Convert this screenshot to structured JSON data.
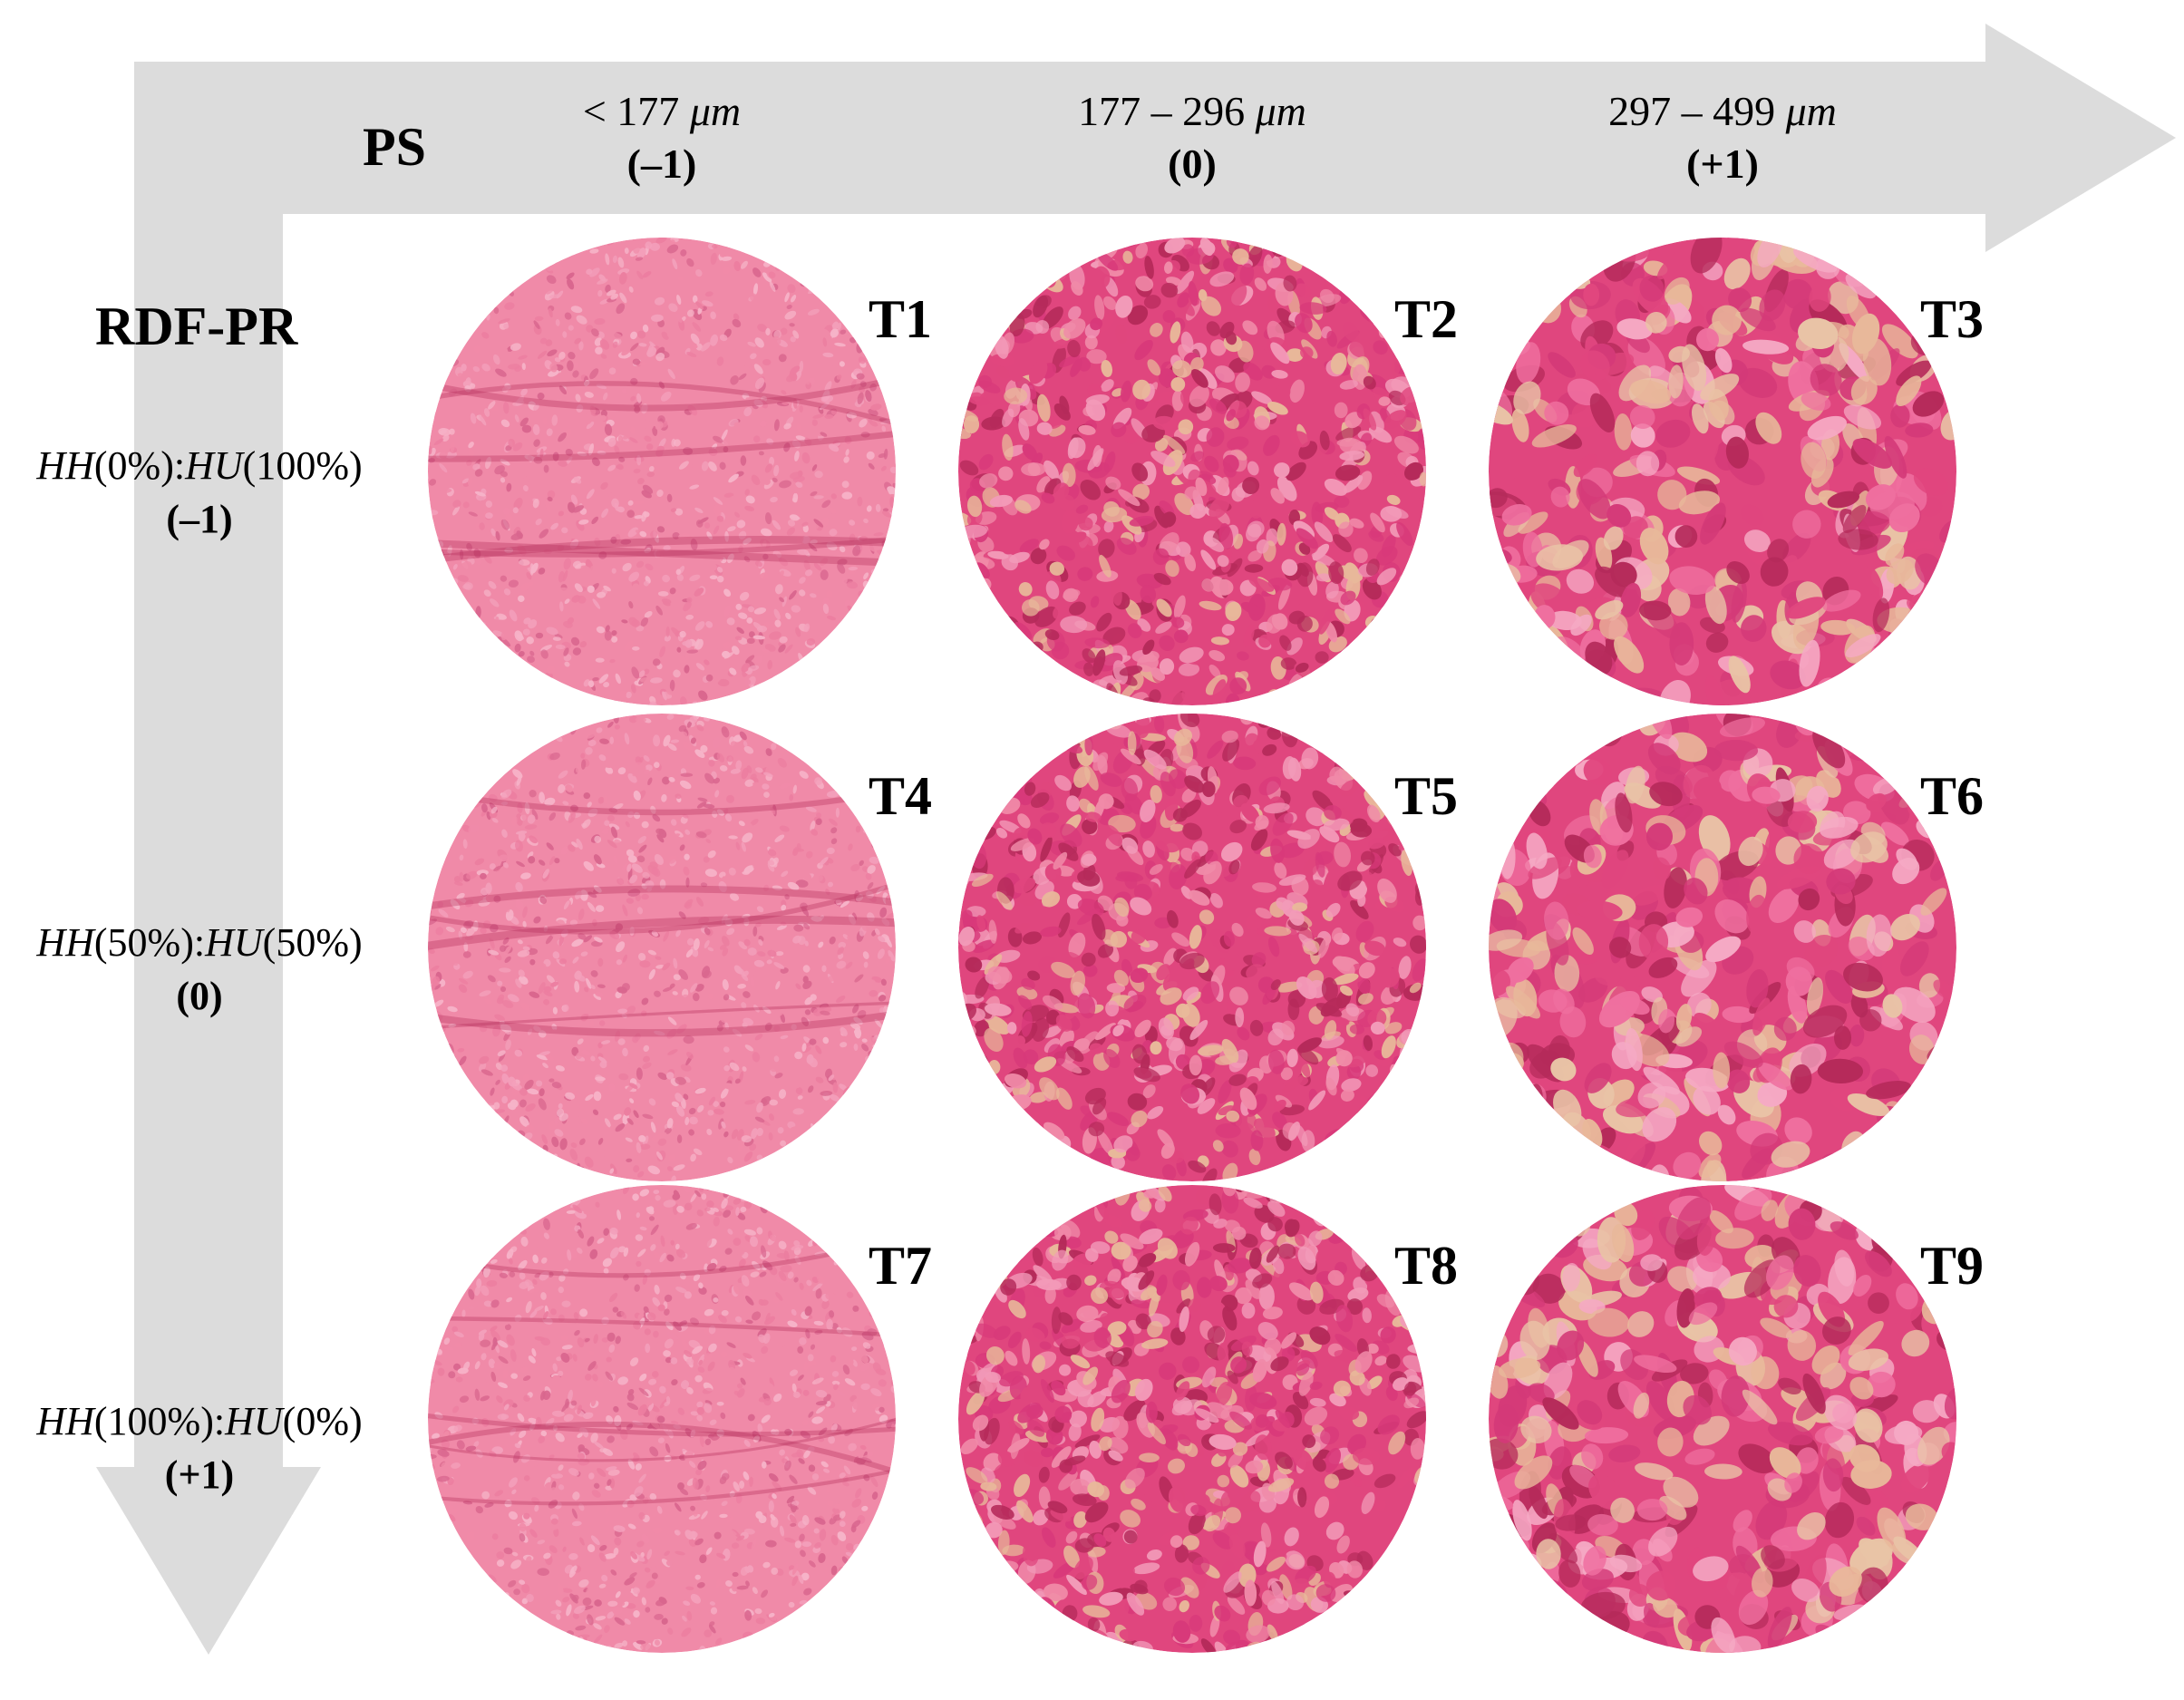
{
  "header": {
    "ps_title": "PS",
    "rdf_title": "RDF-PR"
  },
  "columns": [
    {
      "prefix": "< 177 ",
      "unit": "μm",
      "code": "(–1)"
    },
    {
      "prefix": "177 – 296 ",
      "unit": "μm",
      "code": "(0)"
    },
    {
      "prefix": "297 – 499 ",
      "unit": "μm",
      "code": "(+1)"
    }
  ],
  "rows": [
    {
      "hh": "HH",
      "hh_val": "(0%)",
      "sep": ":",
      "hu": "HU",
      "hu_val": "(100%)",
      "code": "(–1)"
    },
    {
      "hh": "HH",
      "hh_val": "(50%)",
      "sep": ":",
      "hu": "HU",
      "hu_val": "(50%)",
      "code": "(0)"
    },
    {
      "hh": "HH",
      "hh_val": "(100%)",
      "sep": ":",
      "hu": "HU",
      "hu_val": "(0%)",
      "code": "(+1)"
    }
  ],
  "samples": [
    {
      "tag": "T1",
      "texture": "fine"
    },
    {
      "tag": "T2",
      "texture": "medium"
    },
    {
      "tag": "T3",
      "texture": "coarse"
    },
    {
      "tag": "T4",
      "texture": "fine"
    },
    {
      "tag": "T5",
      "texture": "medium"
    },
    {
      "tag": "T6",
      "texture": "coarse"
    },
    {
      "tag": "T7",
      "texture": "fine"
    },
    {
      "tag": "T8",
      "texture": "medium"
    },
    {
      "tag": "T9",
      "texture": "coarse"
    }
  ],
  "colors": {
    "arrow": "#dcdcdc",
    "pink_light": "#f08aa8",
    "pink_mid": "#e0467e",
    "pink_dark": "#b52a5a",
    "beige": "#e8b89a"
  }
}
